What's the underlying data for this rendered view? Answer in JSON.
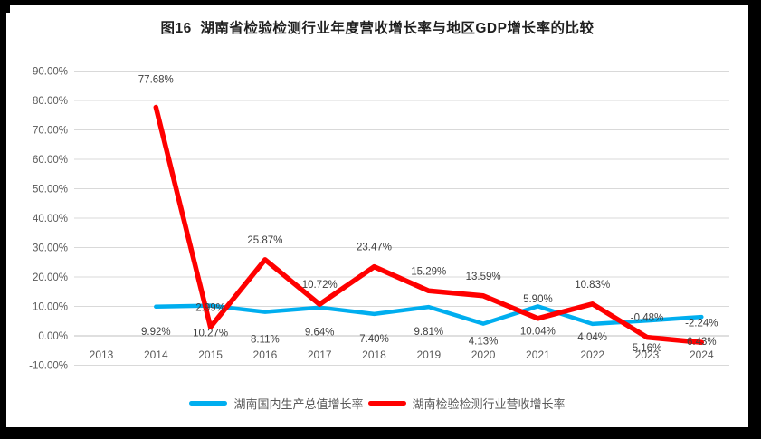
{
  "chart_data": {
    "type": "line",
    "title": "图16  湖南省检验检测行业年度营收增长率与地区GDP增长率的比较",
    "categories": [
      "2013",
      "2014",
      "2015",
      "2016",
      "2017",
      "2018",
      "2019",
      "2020",
      "2021",
      "2022",
      "2023",
      "2024"
    ],
    "y_axis": {
      "min": -10,
      "max": 90,
      "step": 10,
      "format": "percent",
      "tick_labels": [
        "90.00%",
        "80.00%",
        "70.00%",
        "60.00%",
        "50.00%",
        "40.00%",
        "30.00%",
        "20.00%",
        "10.00%",
        "0.00%",
        "-10.00%"
      ]
    },
    "grid": true,
    "legend_position": "bottom",
    "gridline_color": "#D9D9D9",
    "zero_axis_color": "#BFBFBF",
    "axis_label_color": "#595959",
    "data_label_color": "#404040",
    "series": [
      {
        "name": "湖南国内生产总值增长率",
        "color": "#00AEEF",
        "label_position": "below",
        "values": [
          null,
          9.92,
          10.27,
          8.11,
          9.64,
          7.4,
          9.81,
          4.13,
          10.04,
          4.04,
          5.16,
          6.43
        ],
        "labels": [
          "",
          "9.92%",
          "10.27%",
          "8.11%",
          "9.64%",
          "7.40%",
          "9.81%",
          "4.13%",
          "10.04%",
          "4.04%",
          "5.16%",
          "6.43%"
        ],
        "label_dy": [
          0,
          0,
          3,
          3,
          0,
          0,
          0,
          -8,
          0,
          -13,
          3,
          0
        ]
      },
      {
        "name": "湖南检验检测行业营收增长率",
        "color": "#FF0000",
        "label_position": "above",
        "values": [
          null,
          77.68,
          2.99,
          25.87,
          10.72,
          23.47,
          15.29,
          13.59,
          5.9,
          10.83,
          -0.48,
          -2.24
        ],
        "labels": [
          "",
          "77.68%",
          "2.99%",
          "25.87%",
          "10.72%",
          "23.47%",
          "15.29%",
          "13.59%",
          "5.90%",
          "10.83%",
          "-0.48%",
          "-2.24%"
        ],
        "label_dy": [
          0,
          -9,
          0,
          0,
          0,
          0,
          0,
          0,
          0,
          0,
          0,
          0
        ]
      }
    ]
  }
}
